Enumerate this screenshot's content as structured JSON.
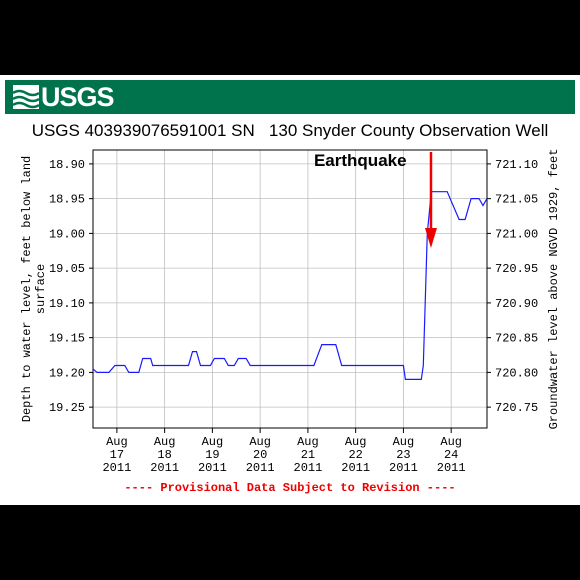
{
  "logo_text": "USGS",
  "title": "USGS 403939076591001 SN   130 Snyder County Observation Well",
  "footer": "---- Provisional Data Subject to Revision ----",
  "annotation": "Earthquake",
  "colors": {
    "banner": "#00734d",
    "line": "#1a1aff",
    "arrow": "#ee0000",
    "footer": "#ee0000",
    "grid": "#bfbfbf"
  },
  "chart_data": {
    "type": "line",
    "title": "USGS 403939076591001 SN   130 Snyder County Observation Well",
    "ylabel_left": "Depth to water level, feet below land surface",
    "ylabel_right": "Groundwater level above NGVD 1929, feet",
    "left_ticks": [
      "18.90",
      "18.95",
      "19.00",
      "19.05",
      "19.10",
      "19.15",
      "19.20",
      "19.25"
    ],
    "right_ticks": [
      "721.10",
      "721.05",
      "721.00",
      "720.95",
      "720.90",
      "720.85",
      "720.80",
      "720.75"
    ],
    "ylim_left": [
      19.28,
      18.88
    ],
    "x_ticks": [
      {
        "month": "Aug",
        "day": "17",
        "year": "2011"
      },
      {
        "month": "Aug",
        "day": "18",
        "year": "2011"
      },
      {
        "month": "Aug",
        "day": "19",
        "year": "2011"
      },
      {
        "month": "Aug",
        "day": "20",
        "year": "2011"
      },
      {
        "month": "Aug",
        "day": "21",
        "year": "2011"
      },
      {
        "month": "Aug",
        "day": "22",
        "year": "2011"
      },
      {
        "month": "Aug",
        "day": "23",
        "year": "2011"
      },
      {
        "month": "Aug",
        "day": "24",
        "year": "2011"
      }
    ],
    "xlim": [
      "2011-08-16 12:00",
      "2011-08-24 18:00"
    ],
    "grid": true,
    "annotation_time": "2011-08-23 13:51",
    "series": [
      {
        "points": [
          [
            "2011-08-16 12:00",
            19.195
          ],
          [
            "2011-08-16 14:00",
            19.2
          ],
          [
            "2011-08-16 20:00",
            19.2
          ],
          [
            "2011-08-16 23:00",
            19.19
          ],
          [
            "2011-08-17 04:00",
            19.19
          ],
          [
            "2011-08-17 06:00",
            19.2
          ],
          [
            "2011-08-17 11:00",
            19.2
          ],
          [
            "2011-08-17 13:00",
            19.18
          ],
          [
            "2011-08-17 17:00",
            19.18
          ],
          [
            "2011-08-17 18:00",
            19.19
          ],
          [
            "2011-08-18 12:00",
            19.19
          ],
          [
            "2011-08-18 14:00",
            19.17
          ],
          [
            "2011-08-18 16:00",
            19.17
          ],
          [
            "2011-08-18 18:00",
            19.19
          ],
          [
            "2011-08-18 23:00",
            19.19
          ],
          [
            "2011-08-19 01:00",
            19.18
          ],
          [
            "2011-08-19 06:00",
            19.18
          ],
          [
            "2011-08-19 08:00",
            19.19
          ],
          [
            "2011-08-19 11:00",
            19.19
          ],
          [
            "2011-08-19 13:00",
            19.18
          ],
          [
            "2011-08-19 17:00",
            19.18
          ],
          [
            "2011-08-19 19:00",
            19.19
          ],
          [
            "2011-08-21 03:00",
            19.19
          ],
          [
            "2011-08-21 07:00",
            19.16
          ],
          [
            "2011-08-21 14:00",
            19.16
          ],
          [
            "2011-08-21 17:00",
            19.19
          ],
          [
            "2011-08-23 00:00",
            19.19
          ],
          [
            "2011-08-23 01:00",
            19.21
          ],
          [
            "2011-08-23 09:00",
            19.21
          ],
          [
            "2011-08-23 10:00",
            19.19
          ],
          [
            "2011-08-23 12:00",
            19.0
          ],
          [
            "2011-08-23 14:00",
            18.94
          ],
          [
            "2011-08-23 22:00",
            18.94
          ],
          [
            "2011-08-24 04:00",
            18.98
          ],
          [
            "2011-08-24 07:00",
            18.98
          ],
          [
            "2011-08-24 10:00",
            18.95
          ],
          [
            "2011-08-24 14:00",
            18.95
          ],
          [
            "2011-08-24 16:00",
            18.96
          ],
          [
            "2011-08-24 18:00",
            18.95
          ]
        ]
      }
    ]
  }
}
